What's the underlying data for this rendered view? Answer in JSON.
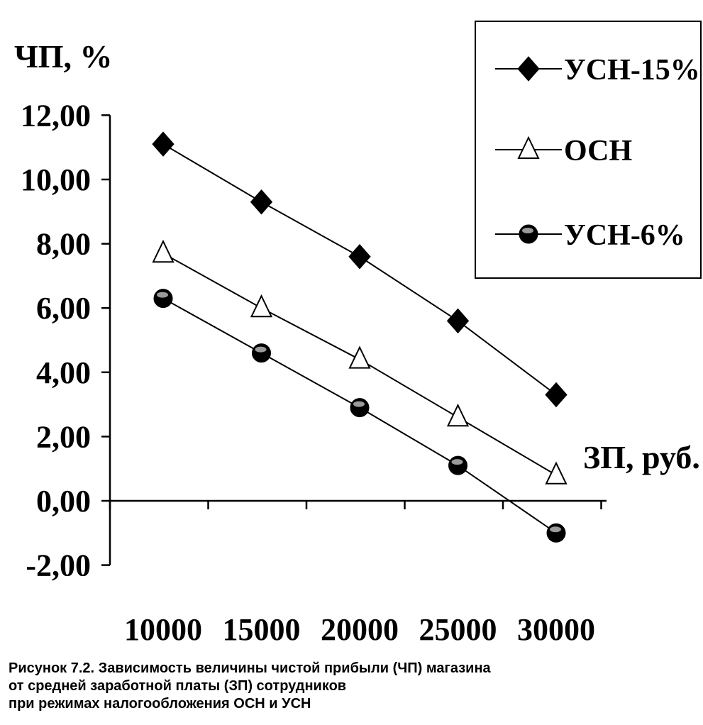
{
  "chart_data": {
    "type": "line",
    "title": "",
    "ylabel": "ЧП, %",
    "xlabel": "ЗП, руб.",
    "categories": [
      "10000",
      "15000",
      "20000",
      "25000",
      "30000"
    ],
    "ylim": [
      -2,
      12
    ],
    "yticks": [
      -2,
      0,
      2,
      4,
      6,
      8,
      10,
      12
    ],
    "ytick_labels": [
      "-2,00",
      "0,00",
      "2,00",
      "4,00",
      "6,00",
      "8,00",
      "10,00",
      "12,00"
    ],
    "grid": false,
    "legend_position": "top-right",
    "series": [
      {
        "name": "УСН-15%",
        "marker": "diamond",
        "values": [
          11.1,
          9.3,
          7.6,
          5.6,
          3.3
        ]
      },
      {
        "name": "ОСН",
        "marker": "triangle",
        "values": [
          7.7,
          6.0,
          4.4,
          2.6,
          0.8
        ]
      },
      {
        "name": "УСН-6%",
        "marker": "circle",
        "values": [
          6.3,
          4.6,
          2.9,
          1.1,
          -1.0
        ]
      }
    ]
  },
  "caption": [
    "Рисунок 7.2. Зависимость величины чистой прибыли (ЧП) магазина",
    "от средней заработной платы (ЗП) сотрудников",
    "при режимах налогообложения ОСН и УСН"
  ]
}
